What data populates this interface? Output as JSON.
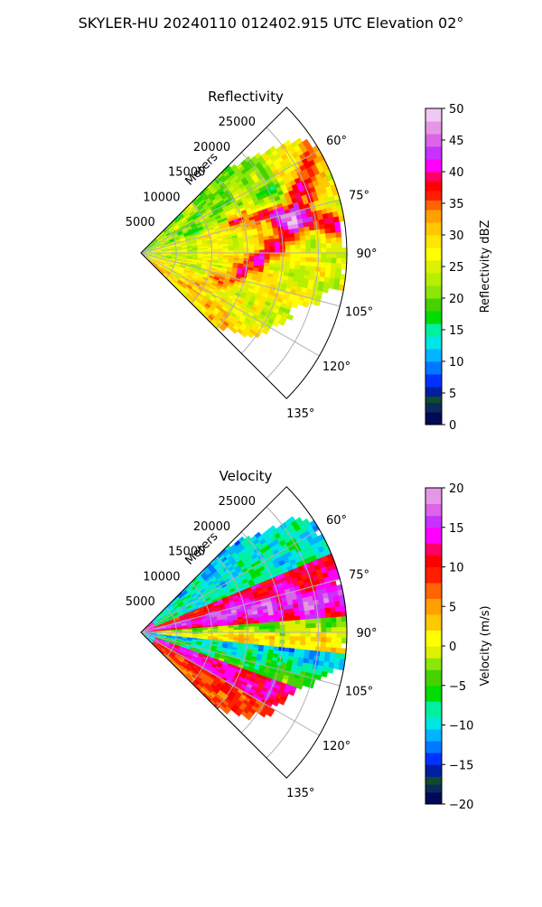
{
  "figure": {
    "suptitle": "SKYLER-HU  20240110  012402.915 UTC Elevation 02°"
  },
  "chart_data": [
    {
      "type": "heatmap",
      "projection": "polar-sector",
      "title": "Reflectivity",
      "range_axis_label": "Meters",
      "range_ticks": [
        5000,
        10000,
        15000,
        20000,
        25000
      ],
      "range_tick_labels": [
        "5000",
        "10000",
        "15000",
        "20000",
        "25000"
      ],
      "rlim": [
        0,
        29000
      ],
      "azimuth_ticks": [
        60,
        75,
        90,
        105,
        120,
        135
      ],
      "azimuth_tick_labels": [
        "60°",
        "75°",
        "90°",
        "105°",
        "120°",
        "135°"
      ],
      "azimuth_range": [
        45,
        135
      ],
      "grid": true,
      "colorbar": {
        "label": "Reflectivity dBZ",
        "vmin": 0,
        "vmax": 50,
        "ticks": [
          0,
          5,
          10,
          15,
          20,
          25,
          30,
          35,
          40,
          45,
          50
        ],
        "tick_labels": [
          "0",
          "5",
          "10",
          "15",
          "20",
          "25",
          "30",
          "35",
          "40",
          "45",
          "50"
        ],
        "stops": [
          {
            "v": 0,
            "c": "#000a55"
          },
          {
            "v": 2,
            "c": "#0b2a5a"
          },
          {
            "v": 3.5,
            "c": "#0f4a2e"
          },
          {
            "v": 4.5,
            "c": "#001ea0"
          },
          {
            "v": 6,
            "c": "#0032ff"
          },
          {
            "v": 8,
            "c": "#0078ff"
          },
          {
            "v": 10,
            "c": "#00b4ff"
          },
          {
            "v": 12,
            "c": "#00e6e6"
          },
          {
            "v": 14,
            "c": "#00f0a0"
          },
          {
            "v": 16,
            "c": "#00dc00"
          },
          {
            "v": 18,
            "c": "#46d200"
          },
          {
            "v": 20,
            "c": "#8ce60a"
          },
          {
            "v": 22,
            "c": "#b4f000"
          },
          {
            "v": 24,
            "c": "#dcf000"
          },
          {
            "v": 26,
            "c": "#ffff00"
          },
          {
            "v": 28,
            "c": "#ffe600"
          },
          {
            "v": 30,
            "c": "#ffc800"
          },
          {
            "v": 32,
            "c": "#ffa000"
          },
          {
            "v": 34,
            "c": "#ff6400"
          },
          {
            "v": 35.5,
            "c": "#ff1e00"
          },
          {
            "v": 37,
            "c": "#ff0000"
          },
          {
            "v": 38.5,
            "c": "#ff0064"
          },
          {
            "v": 40,
            "c": "#ff00ff"
          },
          {
            "v": 42,
            "c": "#c832ff"
          },
          {
            "v": 44,
            "c": "#dc64e6"
          },
          {
            "v": 46,
            "c": "#e696e6"
          },
          {
            "v": 48,
            "c": "#f0c8f0"
          },
          {
            "v": 50,
            "c": "#ffe6ff"
          }
        ]
      },
      "field": "reflectivity"
    },
    {
      "type": "heatmap",
      "projection": "polar-sector",
      "title": "Velocity",
      "range_axis_label": "Meters",
      "range_ticks": [
        5000,
        10000,
        15000,
        20000,
        25000
      ],
      "range_tick_labels": [
        "5000",
        "10000",
        "15000",
        "20000",
        "25000"
      ],
      "rlim": [
        0,
        29000
      ],
      "azimuth_ticks": [
        60,
        75,
        90,
        105,
        120,
        135
      ],
      "azimuth_tick_labels": [
        "60°",
        "75°",
        "90°",
        "105°",
        "120°",
        "135°"
      ],
      "azimuth_range": [
        45,
        135
      ],
      "grid": true,
      "colorbar": {
        "label": "Velocity (m/s)",
        "vmin": -20,
        "vmax": 20,
        "ticks": [
          -20,
          -15,
          -10,
          -5,
          0,
          5,
          10,
          15,
          20
        ],
        "tick_labels": [
          "−20",
          "−15",
          "−10",
          "−5",
          "0",
          "5",
          "10",
          "15",
          "20"
        ],
        "stops": [
          {
            "v": -20,
            "c": "#000a55"
          },
          {
            "v": -18.5,
            "c": "#0b2a5a"
          },
          {
            "v": -17.5,
            "c": "#0f4a2e"
          },
          {
            "v": -16.5,
            "c": "#001ea0"
          },
          {
            "v": -15,
            "c": "#0032ff"
          },
          {
            "v": -13.5,
            "c": "#0078ff"
          },
          {
            "v": -12,
            "c": "#00b4ff"
          },
          {
            "v": -10.5,
            "c": "#00e6e6"
          },
          {
            "v": -9,
            "c": "#00f0a0"
          },
          {
            "v": -7,
            "c": "#00dc00"
          },
          {
            "v": -5,
            "c": "#46d200"
          },
          {
            "v": -3,
            "c": "#8ce60a"
          },
          {
            "v": -1.5,
            "c": "#dcf000"
          },
          {
            "v": 0,
            "c": "#ffff00"
          },
          {
            "v": 2,
            "c": "#ffc800"
          },
          {
            "v": 4,
            "c": "#ffa000"
          },
          {
            "v": 6,
            "c": "#ff6400"
          },
          {
            "v": 8,
            "c": "#ff1e00"
          },
          {
            "v": 10,
            "c": "#ff0000"
          },
          {
            "v": 11.5,
            "c": "#ff0064"
          },
          {
            "v": 13,
            "c": "#ff00ff"
          },
          {
            "v": 15,
            "c": "#c832ff"
          },
          {
            "v": 16.5,
            "c": "#dc64e6"
          },
          {
            "v": 18,
            "c": "#e696e6"
          },
          {
            "v": 20,
            "c": "#ffe6ff"
          }
        ]
      },
      "field": "velocity"
    }
  ]
}
